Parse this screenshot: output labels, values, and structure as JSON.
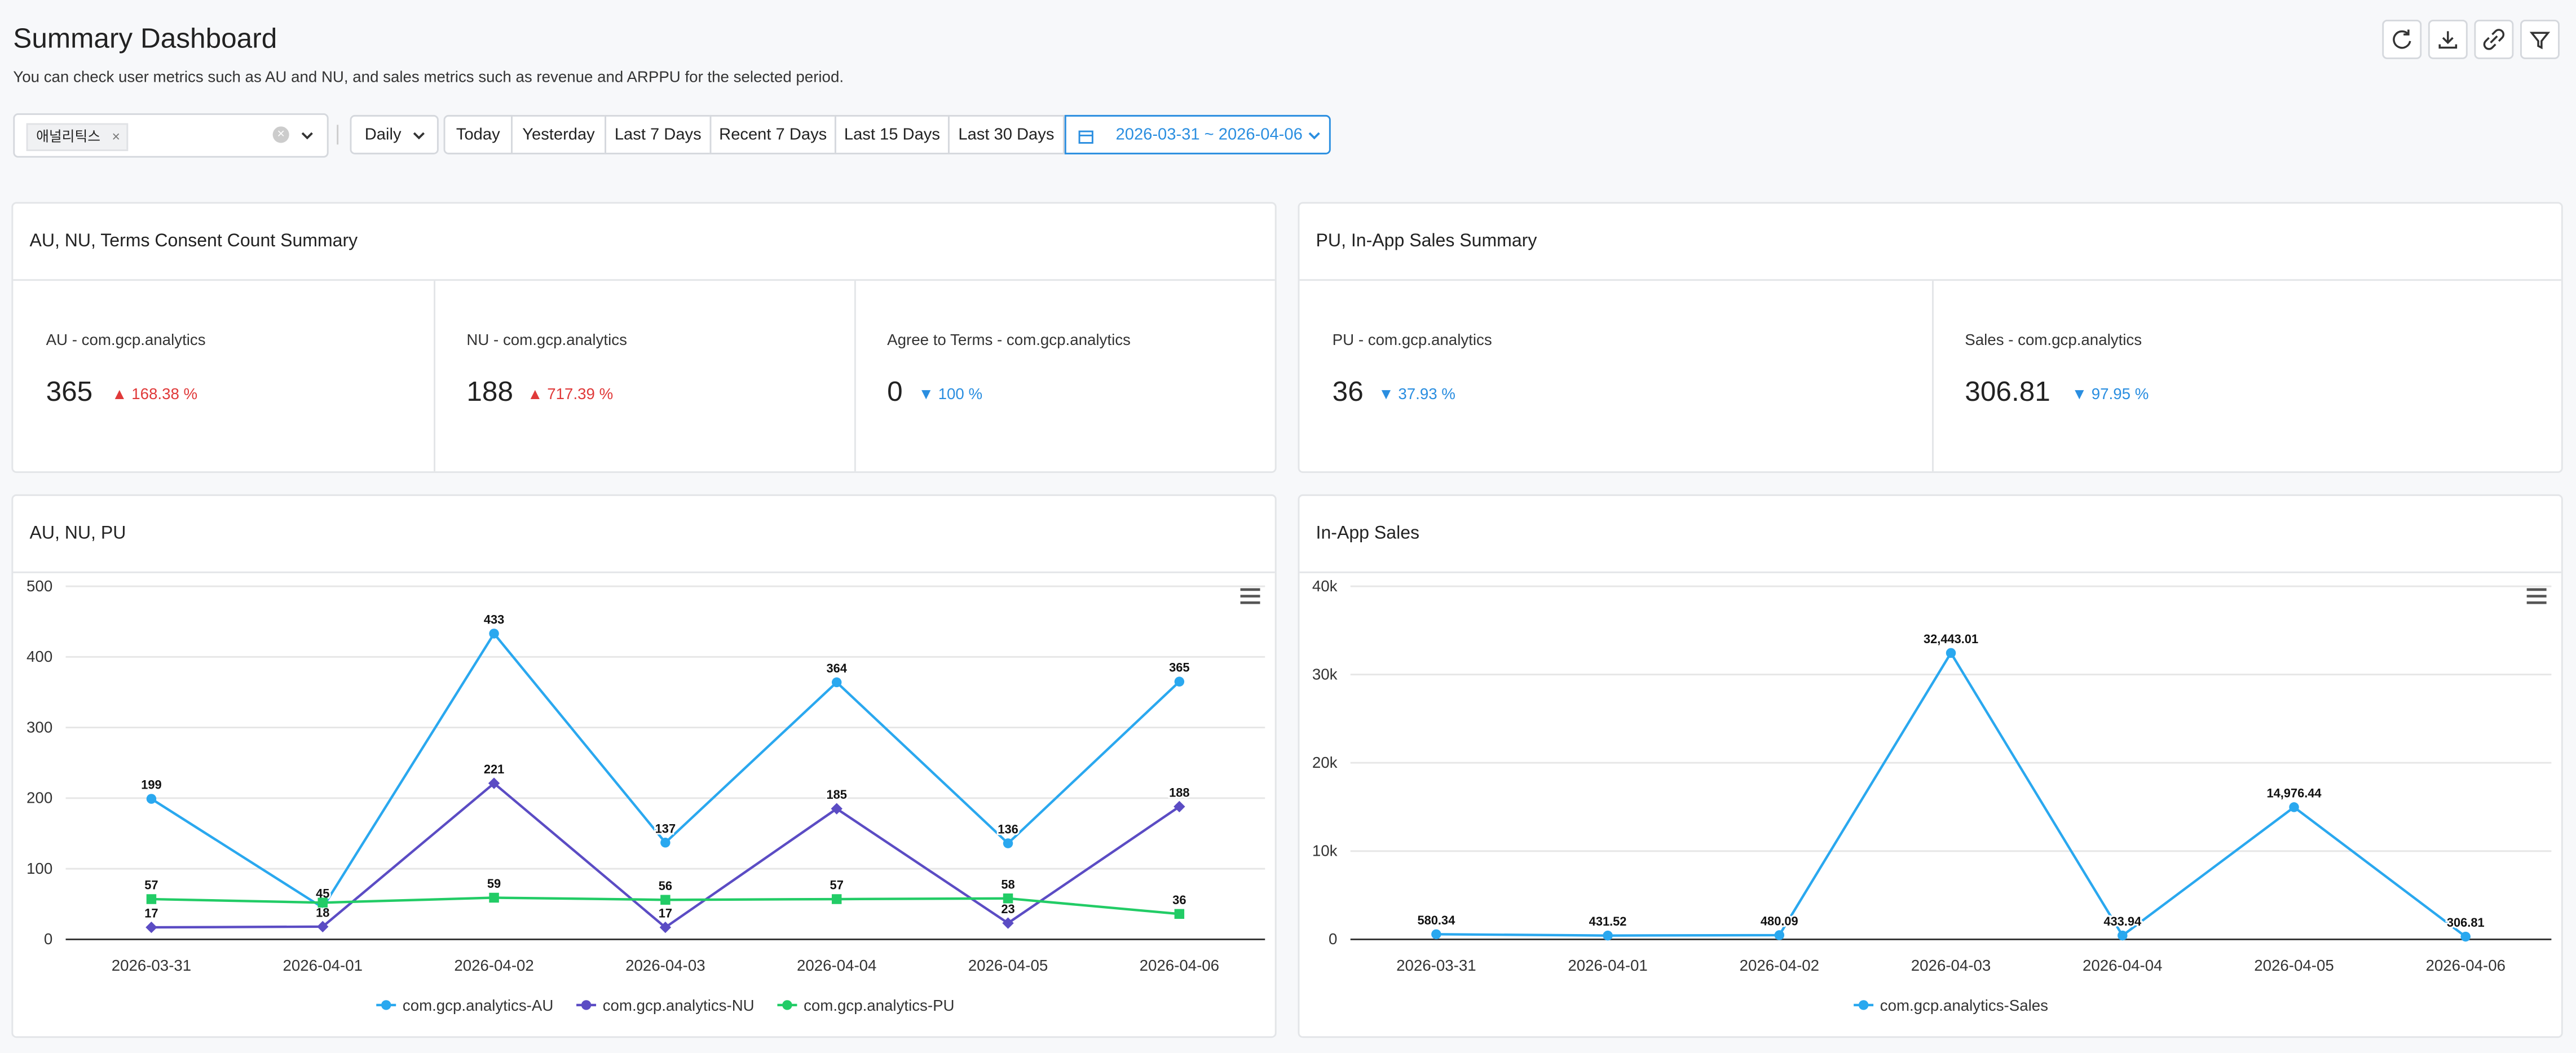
{
  "header": {
    "title": "Summary Dashboard",
    "subtitle": "You can check user metrics such as AU and NU, and sales metrics such as revenue and ARPPU for the selected period."
  },
  "filters": {
    "tag": "애널리틱스",
    "interval": "Daily",
    "presets": [
      "Today",
      "Yesterday",
      "Last 7 Days",
      "Recent 7 Days",
      "Last 15 Days",
      "Last 30 Days"
    ],
    "date_range": "2026-03-31 ~ 2026-04-06"
  },
  "summaries": [
    {
      "title": "AU, NU, Terms Consent Count Summary",
      "metrics": [
        {
          "label": "AU - com.gcp.analytics",
          "value": "365",
          "change": "168.38 %",
          "direction": "up"
        },
        {
          "label": "NU - com.gcp.analytics",
          "value": "188",
          "change": "717.39 %",
          "direction": "up"
        },
        {
          "label": "Agree to Terms - com.gcp.analytics",
          "value": "0",
          "change": "100 %",
          "direction": "down"
        }
      ]
    },
    {
      "title": "PU, In-App Sales Summary",
      "metrics": [
        {
          "label": "PU - com.gcp.analytics",
          "value": "36",
          "change": "37.93 %",
          "direction": "down"
        },
        {
          "label": "Sales - com.gcp.analytics",
          "value": "306.81",
          "change": "97.95 %",
          "direction": "down"
        }
      ]
    }
  ],
  "chart_data": [
    {
      "type": "line",
      "title": "AU, NU, PU",
      "categories": [
        "2026-03-31",
        "2026-04-01",
        "2026-04-02",
        "2026-04-03",
        "2026-04-04",
        "2026-04-05",
        "2026-04-06"
      ],
      "series": [
        {
          "name": "com.gcp.analytics-AU",
          "color": "#2aa8ef",
          "marker": "circle",
          "values": [
            199,
            45,
            433,
            137,
            364,
            136,
            365
          ]
        },
        {
          "name": "com.gcp.analytics-NU",
          "color": "#5b4cc4",
          "marker": "diamond",
          "values": [
            17,
            18,
            221,
            17,
            185,
            23,
            188
          ]
        },
        {
          "name": "com.gcp.analytics-PU",
          "color": "#22cc66",
          "marker": "square",
          "values": [
            57,
            52,
            59,
            56,
            57,
            58,
            36
          ],
          "value_labels": [
            "57",
            null,
            "59",
            "56",
            "57",
            "58",
            "36"
          ]
        }
      ],
      "ylim": [
        0,
        500
      ],
      "yticks": [
        0,
        100,
        200,
        300,
        400,
        500
      ],
      "grid": true,
      "legend": "bottom"
    },
    {
      "type": "line",
      "title": "In-App Sales",
      "categories": [
        "2026-03-31",
        "2026-04-01",
        "2026-04-02",
        "2026-04-03",
        "2026-04-04",
        "2026-04-05",
        "2026-04-06"
      ],
      "series": [
        {
          "name": "com.gcp.analytics-Sales",
          "color": "#2aa8ef",
          "marker": "circle",
          "values": [
            580.34,
            431.52,
            480.09,
            32443.01,
            433.94,
            14976.44,
            306.81
          ],
          "value_labels": [
            "580.34",
            "431.52",
            "480.09",
            "32,443.01",
            "433.94",
            "14,976.44",
            "306.81"
          ]
        }
      ],
      "ylim": [
        0,
        40000
      ],
      "yticks": [
        0,
        {
          "value": 10000,
          "label": "10k"
        },
        {
          "value": 20000,
          "label": "20k"
        },
        {
          "value": 30000,
          "label": "30k"
        },
        {
          "value": 40000,
          "label": "40k"
        }
      ],
      "grid": true,
      "legend": "bottom"
    }
  ]
}
